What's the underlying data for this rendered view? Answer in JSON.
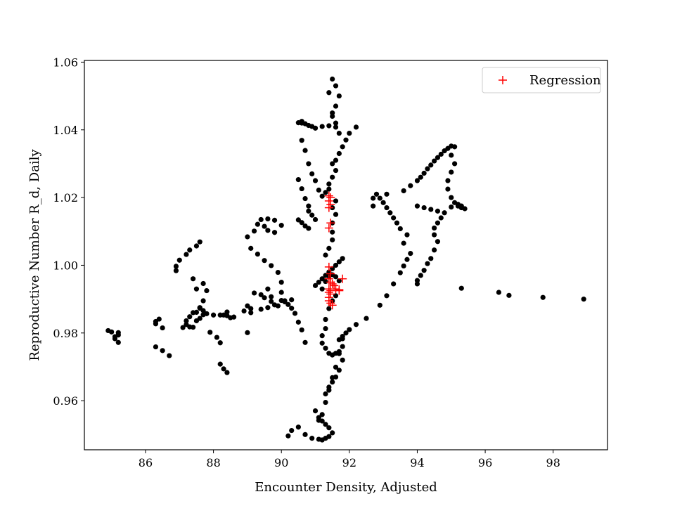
{
  "chart_data": {
    "type": "scatter",
    "title": "",
    "xlabel": "Encounter Density, Adjusted",
    "ylabel": "Reproductive Number R_d, Daily",
    "xlim": [
      84.2,
      99.6
    ],
    "ylim": [
      0.9455,
      1.0605
    ],
    "xticks": [
      "86",
      "88",
      "90",
      "92",
      "94",
      "96",
      "98"
    ],
    "yticks": [
      "0.96",
      "0.98",
      "1.00",
      "1.02",
      "1.04",
      "1.06"
    ],
    "grid": false,
    "legend": {
      "position": "top-right",
      "entries": [
        "Regression"
      ]
    },
    "colors": {
      "points": "#000000",
      "regression": "#ff0000"
    },
    "series": [
      {
        "marker": "circle",
        "color": "#000000",
        "x": [
          84.9,
          85.0,
          85.1,
          85.2,
          85.2,
          85.1,
          85.2,
          86.3,
          86.3,
          86.4,
          86.5,
          86.3,
          86.5,
          86.7,
          86.9,
          87.0,
          86.9,
          87.2,
          87.3,
          87.5,
          87.6,
          87.1,
          87.2,
          87.3,
          87.4,
          87.6,
          87.5,
          87.4,
          87.7,
          87.8,
          87.7,
          87.3,
          87.2,
          87.4,
          87.5,
          87.6,
          87.7,
          87.5,
          87.6,
          87.7,
          87.8,
          88.0,
          88.2,
          88.4,
          88.6,
          87.9,
          88.1,
          88.2,
          88.3,
          88.4,
          88.5,
          88.2,
          88.3,
          88.4,
          88.9,
          89.1,
          89.0,
          89.0,
          89.2,
          89.3,
          89.4,
          89.6,
          89.8,
          90.0,
          89.5,
          89.6,
          89.8,
          89.1,
          89.3,
          89.5,
          89.7,
          89.9,
          90.0,
          89.2,
          89.4,
          89.5,
          89.7,
          89.9,
          90.1,
          90.0,
          89.6,
          89.7,
          89.0,
          89.1,
          89.4,
          89.6,
          89.8,
          90.0,
          90.1,
          90.6,
          90.5,
          90.6,
          90.7,
          90.8,
          90.9,
          91.0,
          91.2,
          91.4,
          91.6,
          90.5,
          90.6,
          90.7,
          90.8,
          90.6,
          90.7,
          90.8,
          90.9,
          91.0,
          91.1,
          90.5,
          90.6,
          90.7,
          90.8,
          90.8,
          90.9,
          91.0,
          90.3,
          90.2,
          90.3,
          90.4,
          90.5,
          90.6,
          90.7,
          90.2,
          90.3,
          90.5,
          90.7,
          90.9,
          91.1,
          91.2,
          91.3,
          91.4,
          91.5,
          91.1,
          91.2,
          91.3,
          91.4,
          91.5,
          91.6,
          91.7,
          91.8,
          91.2,
          91.3,
          91.3,
          91.4,
          91.5,
          91.6,
          91.2,
          91.3,
          91.4,
          91.5,
          91.6,
          91.7,
          91.0,
          91.1,
          91.2,
          91.3,
          91.4,
          91.5,
          91.6,
          91.7,
          91.8,
          91.3,
          91.4,
          91.5,
          91.5,
          91.5,
          91.6,
          91.5,
          91.6,
          91.2,
          91.3,
          91.4,
          91.4,
          91.5,
          91.6,
          91.5,
          91.6,
          91.7,
          91.8,
          91.9,
          92.0,
          92.2,
          91.5,
          91.6,
          91.7,
          91.6,
          91.5,
          91.4,
          91.5,
          91.6,
          91.7,
          91.2,
          91.3,
          91.4,
          91.5,
          91.6,
          91.7,
          91.8,
          91.3,
          91.4,
          91.5,
          91.6,
          91.7,
          91.8,
          91.0,
          91.1,
          91.2,
          91.3,
          91.4,
          91.7,
          91.8,
          91.9,
          92.0,
          92.2,
          92.5,
          92.9,
          93.1,
          93.3,
          93.5,
          93.6,
          93.7,
          93.8,
          93.6,
          93.7,
          93.5,
          93.4,
          93.3,
          93.2,
          93.1,
          93.0,
          92.9,
          92.8,
          92.7,
          92.7,
          93.1,
          93.6,
          93.8,
          94.0,
          94.1,
          94.2,
          94.3,
          94.4,
          94.5,
          94.6,
          94.7,
          94.8,
          94.9,
          95.0,
          95.1,
          95.0,
          95.1,
          95.0,
          94.9,
          94.9,
          95.0,
          95.1,
          95.2,
          95.3,
          95.4,
          95.3,
          95.2,
          95.0,
          94.0,
          94.2,
          94.4,
          94.6,
          94.8,
          94.7,
          94.6,
          94.5,
          94.5,
          94.6,
          94.5,
          94.4,
          94.3,
          94.2,
          94.1,
          94.0,
          94.0,
          95.3,
          96.4,
          96.7,
          97.7,
          98.9
        ],
        "y": [
          0.9807,
          0.9803,
          0.9789,
          0.9801,
          0.9794,
          0.9783,
          0.9772,
          0.9827,
          0.9834,
          0.9841,
          0.9815,
          0.9759,
          0.9748,
          0.9733,
          0.9997,
          1.0015,
          0.9984,
          1.0032,
          1.0045,
          1.0057,
          1.0069,
          0.9816,
          0.9836,
          0.9848,
          0.986,
          0.9873,
          0.993,
          0.996,
          0.9946,
          0.9925,
          0.9895,
          0.9818,
          0.9825,
          0.9817,
          0.9836,
          0.9843,
          0.9854,
          0.9861,
          0.9875,
          0.9866,
          0.9857,
          0.9853,
          0.9853,
          0.9851,
          0.9847,
          0.9802,
          0.9787,
          0.9771,
          0.9853,
          0.9862,
          0.9845,
          0.9708,
          0.9694,
          0.9683,
          0.9865,
          0.986,
          0.9801,
          1.0084,
          1.0101,
          1.0121,
          1.0135,
          1.0137,
          1.0133,
          1.0118,
          1.0115,
          1.0103,
          1.0097,
          1.005,
          1.0033,
          1.0014,
          0.9999,
          0.9979,
          0.995,
          0.9918,
          0.9913,
          0.9904,
          0.9893,
          0.988,
          0.9892,
          0.992,
          0.993,
          0.9907,
          0.988,
          0.9872,
          0.987,
          0.9875,
          0.9883,
          0.9896,
          0.9895,
          1.0425,
          1.0421,
          1.042,
          1.0418,
          1.0413,
          1.041,
          1.0405,
          1.041,
          1.0412,
          1.0408,
          1.0134,
          1.0126,
          1.0116,
          1.0109,
          1.0369,
          1.0339,
          1.03,
          1.027,
          1.025,
          1.0222,
          1.0253,
          1.0226,
          1.0197,
          1.0175,
          1.016,
          1.0148,
          1.0135,
          0.9898,
          0.9884,
          0.9873,
          0.9858,
          0.9832,
          0.9809,
          0.9772,
          0.9496,
          0.9512,
          0.9522,
          0.95,
          0.9489,
          0.9486,
          0.9484,
          0.9489,
          0.9494,
          0.9505,
          0.9542,
          0.9559,
          0.9595,
          0.9631,
          0.9668,
          0.9699,
          0.9739,
          0.9783,
          0.9792,
          0.9813,
          0.984,
          0.9872,
          0.9895,
          0.991,
          0.993,
          0.9952,
          0.9968,
          0.9972,
          0.9966,
          0.9954,
          0.994,
          0.995,
          0.996,
          0.997,
          0.998,
          0.999,
          1.0,
          1.001,
          1.002,
          1.003,
          1.005,
          1.0075,
          1.0098,
          1.0125,
          1.015,
          1.017,
          1.019,
          1.0204,
          1.0215,
          1.0225,
          1.024,
          1.026,
          1.028,
          1.03,
          1.031,
          1.033,
          1.035,
          1.037,
          1.039,
          1.0408,
          1.044,
          1.047,
          1.05,
          1.053,
          1.055,
          1.051,
          1.045,
          1.042,
          1.039,
          0.977,
          0.9755,
          0.974,
          0.9735,
          0.974,
          0.9745,
          0.976,
          0.962,
          0.964,
          0.9655,
          0.967,
          0.969,
          0.972,
          0.957,
          0.955,
          0.954,
          0.953,
          0.952,
          0.978,
          0.979,
          0.98,
          0.981,
          0.9825,
          0.9843,
          0.9882,
          0.991,
          0.9945,
          0.9978,
          0.9998,
          1.0017,
          1.0035,
          1.0065,
          1.009,
          1.0108,
          1.0125,
          1.014,
          1.0155,
          1.017,
          1.0185,
          1.0198,
          1.021,
          1.0198,
          1.0175,
          1.021,
          1.022,
          1.0235,
          1.025,
          1.026,
          1.0272,
          1.0285,
          1.0296,
          1.0308,
          1.0318,
          1.0328,
          1.0338,
          1.0345,
          1.0352,
          1.035,
          1.0325,
          1.03,
          1.0275,
          1.025,
          1.0225,
          1.02,
          1.0185,
          1.0175,
          1.017,
          1.0167,
          1.0175,
          1.018,
          1.0172,
          1.0175,
          1.017,
          1.0165,
          1.016,
          1.0155,
          1.014,
          1.0125,
          1.011,
          1.009,
          1.007,
          1.0045,
          1.002,
          1.0005,
          0.9985,
          0.997,
          0.9955,
          0.9945,
          0.9932,
          0.992,
          0.9911,
          0.9905,
          0.99
        ]
      },
      {
        "name": "Regression",
        "marker": "plus",
        "color": "#ff0000",
        "x": [
          91.4,
          91.45,
          91.4,
          91.45,
          91.4,
          91.45,
          91.4,
          91.4,
          91.45,
          91.4,
          91.45,
          91.5,
          91.55,
          91.4,
          91.45,
          91.4,
          91.45,
          91.4,
          91.4,
          91.45,
          91.5,
          91.6,
          91.7,
          91.8,
          91.7
        ],
        "y": [
          1.0205,
          1.02,
          1.019,
          1.018,
          1.017,
          1.0125,
          1.011,
          0.9995,
          0.9975,
          0.996,
          0.995,
          0.9945,
          0.994,
          0.993,
          0.9925,
          0.992,
          0.9915,
          0.9905,
          0.9895,
          0.9888,
          0.9882,
          0.993,
          0.9928,
          0.996,
          0.9925
        ]
      }
    ]
  }
}
